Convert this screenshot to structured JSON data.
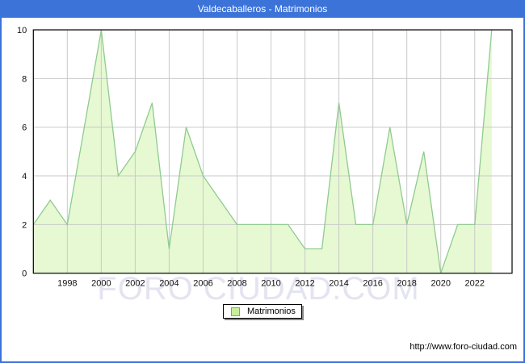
{
  "window": {
    "title": "Valdecaballeros - Matrimonios",
    "title_bar_color": "#3C73D9",
    "watermark": "FORO CIUDAD.COM",
    "footer_url": "http://www.foro-ciudad.com"
  },
  "legend": {
    "label": "Matrimonios",
    "swatch_color": "#C8EE9A",
    "swatch_border": "#7FA85F"
  },
  "chart_data": {
    "type": "area",
    "title": "Valdecaballeros - Matrimonios",
    "series_name": "Matrimonios",
    "x": [
      1996,
      1997,
      1998,
      1999,
      2000,
      2001,
      2002,
      2003,
      2004,
      2005,
      2006,
      2007,
      2008,
      2009,
      2010,
      2011,
      2012,
      2013,
      2014,
      2015,
      2016,
      2017,
      2018,
      2019,
      2020,
      2021,
      2022,
      2023
    ],
    "values": [
      2,
      3,
      2,
      6,
      10,
      4,
      5,
      7,
      1,
      6,
      4,
      3,
      2,
      2,
      2,
      2,
      1,
      1,
      7,
      2,
      2,
      6,
      2,
      5,
      0,
      2,
      2,
      10
    ],
    "xlabel": "",
    "ylabel": "",
    "ylim": [
      0,
      10
    ],
    "yticks": [
      0,
      2,
      4,
      6,
      8,
      10
    ],
    "xticks": [
      1998,
      2000,
      2002,
      2004,
      2006,
      2008,
      2010,
      2012,
      2014,
      2016,
      2018,
      2020,
      2022
    ],
    "grid": true,
    "legend_position": "bottom-center",
    "fill_color": "#E6F9D2",
    "line_color": "#8FCB8F",
    "grid_color": "#C9C9C9",
    "plot_border_color": "#000000"
  }
}
